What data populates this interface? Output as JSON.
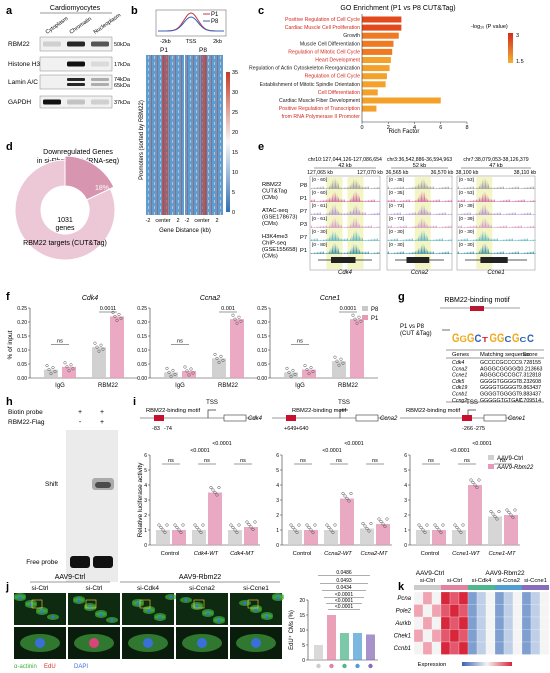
{
  "panels": {
    "a": {
      "letter": "a",
      "header": "Cardiomyocytes",
      "columns": [
        "Cytoplasm",
        "Chromatin",
        "Nucleoplasm"
      ],
      "rows": [
        {
          "name": "RBM22",
          "kda": "50kDa"
        },
        {
          "name": "Histone H3",
          "kda": "17kDa"
        },
        {
          "name": "Lamin A/C",
          "kda": "74kDa\n65kDa"
        },
        {
          "name": "GAPDH",
          "kda": "37kDa"
        }
      ]
    },
    "b": {
      "letter": "b",
      "legend": [
        "P1",
        "P8"
      ],
      "profile_xticks": [
        "-2kb",
        "TSS",
        "2kb"
      ],
      "heat_titles": [
        "P1",
        "P8"
      ],
      "heat_xticks": [
        "-2",
        "center",
        "2"
      ],
      "ylabel": "Promoters (sorted by RBM22)",
      "xlabel": "Gene Distance (kb)",
      "colorbar_ticks": [
        "35",
        "30",
        "25",
        "20",
        "15",
        "10",
        "5",
        "0"
      ]
    },
    "c": {
      "letter": "c",
      "title": "GO Enrichment (P1 vs P8 CUT&Tag)",
      "xlabel": "Rich Factor",
      "xticks": [
        "0",
        "2",
        "4",
        "6",
        "8"
      ],
      "colorbar_title": "-log₁₀ (P value)",
      "colorbar_ticks": [
        "3",
        "1.5"
      ]
    },
    "d": {
      "letter": "d",
      "title_line1": "Downregulated Genes",
      "title_line2": "in si-Rbm22 #1 (RNA-seq)",
      "center_value": "1031",
      "center_unit": "genes",
      "slice_label": "18%",
      "slice_fraction": 0.18,
      "outer_label": "RBM22 targets (CUT&Tag)"
    },
    "e": {
      "letter": "e",
      "coords": [
        "chr10:127,044,126-127,086,654",
        "chr3:36,542,886-36,594,963",
        "chr7:38,079,053-38,126,379"
      ],
      "scales": [
        "42 kb",
        "52 kb",
        "47 kb"
      ],
      "ticks": [
        [
          "127,065 kb",
          "127,070 kb"
        ],
        [
          "36,565 kb",
          "36,570 kb"
        ],
        [
          "38,100 kb",
          "38,110 kb"
        ]
      ],
      "track_groups": [
        {
          "label": "RBM22\nCUT&Tag\n(CMs)",
          "tracks": [
            "P8",
            "P1"
          ]
        },
        {
          "label": "ATAC-seq\n(GSE178673)\n(CMs)",
          "tracks": [
            "P7",
            "P3"
          ]
        },
        {
          "label": "H3K4me3\nChIP-seq\n(GSE155658)\n(CMs)",
          "tracks": [
            "P7",
            "P1"
          ]
        }
      ],
      "ranges": [
        [
          "[0 - 60]",
          "[0 - 60]",
          "[0 - 61]",
          "[0 - 61]",
          "[0 - 30]",
          "[0 - 80]"
        ],
        [
          "[0 - 35]",
          "[0 - 35]",
          "[0 - 73]",
          "[0 - 73]",
          "[0 - 30]",
          "[0 - 30]"
        ],
        [
          "[0 - 53]",
          "[0 - 53]",
          "[0 - 39]",
          "[0 - 39]",
          "[0 - 30]",
          "[0 - 30]"
        ]
      ],
      "genes": [
        "Cdk4",
        "Ccna2",
        "Ccne1"
      ]
    },
    "f": {
      "letter": "f",
      "ylabel": "% of input",
      "legend": [
        "P8",
        "P1"
      ],
      "yticks": [
        "0.00",
        "0.05",
        "0.10",
        "0.15",
        "0.20",
        "0.25"
      ],
      "groups": [
        "IgG",
        "RBM22"
      ],
      "subplots": [
        {
          "gene": "Cdk4",
          "ns": "ns",
          "p": "0.0011",
          "values": [
            0.03,
            0.04,
            0.11,
            0.22
          ]
        },
        {
          "gene": "Ccna2",
          "ns": "ns",
          "p": "0.001",
          "values": [
            0.02,
            0.025,
            0.07,
            0.21
          ]
        },
        {
          "gene": "Ccne1",
          "ns": "ns",
          "p": "0.0001",
          "values": [
            0.02,
            0.03,
            0.06,
            0.21
          ]
        }
      ]
    },
    "g": {
      "letter": "g",
      "title": "RBM22-binding motif",
      "side_label": "P1 vs P8\n(CUT &Tag)",
      "motif_letters": "GGGCTGGCGCC",
      "table_headers": [
        "Genes",
        "Matching sequence",
        "Score"
      ],
      "table_rows": [
        [
          "Cdk4",
          "GCCCCGCCCC",
          "9.728155"
        ],
        [
          "Ccna2",
          "AGGGCGGGGC",
          "10.213663"
        ],
        [
          "Ccne1",
          "AGGGCGCCGC",
          "7.312818"
        ],
        [
          "Cdk5",
          "GGGGTGGGGT",
          "8.232608"
        ],
        [
          "Cdk19",
          "GGGGTGGGGT",
          "9.863437"
        ],
        [
          "Ccnb1",
          "GGGGTGGGGT",
          "9.883437"
        ],
        [
          "Ccng2",
          "GGGGGTGTGAC",
          "7.709514"
        ]
      ]
    },
    "h": {
      "letter": "h",
      "rows": [
        {
          "label": "Biotin probe",
          "signs": [
            "+",
            "+"
          ]
        },
        {
          "label": "RBM22-Flag",
          "signs": [
            "-",
            "+"
          ]
        }
      ],
      "shift_label": "Shift",
      "free_label": "Free probe"
    },
    "i": {
      "letter": "i",
      "ylabel": "Relative luciferase activity",
      "legend": [
        "AAV9-Ctrl",
        "AAV9-Rbm22"
      ],
      "yticks": [
        "0",
        "1",
        "2",
        "3",
        "4",
        "5",
        "6"
      ],
      "diagrams": [
        {
          "motif": "RBM22-binding motif",
          "gene": "Cdk4",
          "pos": [
            "-83",
            "-74"
          ]
        },
        {
          "motif": "RBM22-binding motif",
          "gene": "Ccna2",
          "pos": [
            "+649",
            "+640"
          ]
        },
        {
          "motif": "RBM22-binding motif",
          "gene": "Ccne1",
          "pos": [
            "-266",
            "-275"
          ]
        }
      ],
      "tss": "TSS",
      "subplots": [
        {
          "labels": [
            "Control",
            "Cdk4-WT",
            "Cdk4-MT"
          ],
          "values": [
            1.0,
            1.0,
            1.0,
            3.5,
            1.0,
            1.2
          ],
          "ns": [
            "ns",
            "ns",
            "ns"
          ],
          "p": [
            "<0.0001",
            "<0.0001"
          ]
        },
        {
          "labels": [
            "Control",
            "Ccna2-WT",
            "Ccna2-MT"
          ],
          "values": [
            1.0,
            1.0,
            1.0,
            3.1,
            1.1,
            1.4
          ],
          "ns": [
            "ns",
            "ns",
            "ns"
          ],
          "p": [
            "<0.0001",
            "<0.0001"
          ]
        },
        {
          "labels": [
            "Control",
            "Ccne1-WT",
            "Ccne1-MT"
          ],
          "values": [
            1.0,
            1.0,
            1.0,
            4.0,
            1.9,
            2.0
          ],
          "ns": [
            "ns",
            "ns",
            "ns"
          ],
          "p": [
            "<0.0001",
            "<0.0001"
          ]
        }
      ]
    },
    "j": {
      "letter": "j",
      "groups": [
        "AAV9-Ctrl",
        "AAV9-Rbm22"
      ],
      "columns": [
        "si-Ctrl",
        "si-Ctrl",
        "si-Cdk4",
        "si-Ccna2",
        "si-Ccne1"
      ],
      "stain_labels": [
        "α-actinin",
        "EdU",
        "DAPI"
      ],
      "ylabel": "EdU⁺ CMs (%)",
      "yticks": [
        "0",
        "5",
        "10",
        "15",
        "20"
      ],
      "bar_values": [
        5.0,
        15.0,
        9.0,
        9.0,
        8.5
      ],
      "bar_colors": [
        "#cccccc",
        "#e3829f",
        "#4fb78c",
        "#4f9fd4",
        "#8a6db8"
      ],
      "pvalues": [
        "0.0486",
        "0.0493",
        "0.0434",
        "<0.0001",
        "<0.0001",
        "<0.0001"
      ]
    },
    "k": {
      "letter": "k",
      "groups": [
        "AAV9-Ctrl",
        "AAV9-Rbm22"
      ],
      "columns": [
        "si-Ctrl",
        "si-Ctrl",
        "si-Cdk4",
        "si-Ccna2",
        "si-Ccne1"
      ],
      "genes": [
        "Pcna",
        "Pole2",
        "Aurkb",
        "Chek1",
        "Ccnb1"
      ],
      "expression_label": "Expression"
    }
  },
  "chart_data": [
    {
      "type": "bar",
      "title": "GO Enrichment (P1 vs P8 CUT&Tag)",
      "xlabel": "Rich Factor",
      "categories": [
        "Positive Regulation of Cell Cycle",
        "Cardiac Muscle Cell Proliferation",
        "Growth",
        "Muscle Cell Differentiation",
        "Regulation of Mitotic Cell Cycle",
        "Heart Development",
        "Regulation of Actin Cytoskeleton Reorganization",
        "Regulation of Cell Cycle",
        "Establishment of Mitotic Spindle Orientation",
        "Cell Differentiation",
        "Cardiac Muscle Fiber Development",
        "Positive Regulation of Transcription",
        "from RNA Polymerase II Promoter"
      ],
      "values": [
        3.0,
        3.0,
        2.8,
        2.4,
        2.3,
        2.2,
        2.1,
        1.9,
        1.8,
        1.2,
        6.0,
        1.1,
        0
      ],
      "highlight": [
        true,
        true,
        false,
        false,
        true,
        true,
        false,
        true,
        false,
        true,
        false,
        true,
        true
      ],
      "xlim": [
        0,
        8
      ]
    },
    {
      "type": "line",
      "series": [
        {
          "name": "P1"
        },
        {
          "name": "P8"
        }
      ],
      "x": [
        "-2kb",
        "TSS",
        "2kb"
      ]
    }
  ]
}
